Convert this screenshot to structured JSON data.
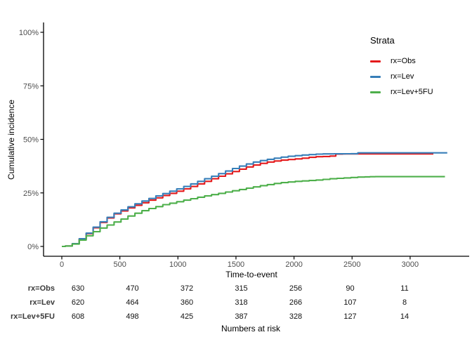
{
  "chart_data": {
    "type": "line",
    "subtype": "cumulative-incidence-step-curves",
    "title": "",
    "xlabel": "Time-to-event",
    "ylabel": "Cumulative incidence",
    "xlim": [
      -160,
      3380
    ],
    "ylim": [
      0,
      100
    ],
    "xticks": [
      0,
      500,
      1000,
      1500,
      2000,
      2500,
      3000
    ],
    "yticks": [
      {
        "value": 0,
        "label": "0%"
      },
      {
        "value": 25,
        "label": "25%"
      },
      {
        "value": 50,
        "label": "50%"
      },
      {
        "value": 75,
        "label": "75%"
      },
      {
        "value": 100,
        "label": "100%"
      }
    ],
    "grid": false,
    "legend_title": "Strata",
    "legend_position": "inside-top-right",
    "axis_color": "#000000",
    "tick_text_color": "#4d4d4d",
    "series": [
      {
        "name": "rx=Obs",
        "color": "#E41A1C",
        "points": [
          [
            0,
            0
          ],
          [
            30,
            0.2
          ],
          [
            90,
            1.2
          ],
          [
            150,
            3.5
          ],
          [
            210,
            6
          ],
          [
            270,
            8.7
          ],
          [
            330,
            11.2
          ],
          [
            390,
            13.3
          ],
          [
            450,
            15.2
          ],
          [
            510,
            16.6
          ],
          [
            570,
            18
          ],
          [
            630,
            19.2
          ],
          [
            690,
            20.4
          ],
          [
            750,
            21.6
          ],
          [
            810,
            22.7
          ],
          [
            870,
            23.8
          ],
          [
            930,
            24.8
          ],
          [
            990,
            25.8
          ],
          [
            1050,
            26.9
          ],
          [
            1110,
            28
          ],
          [
            1170,
            29.2
          ],
          [
            1230,
            30.4
          ],
          [
            1290,
            31.6
          ],
          [
            1350,
            32.8
          ],
          [
            1410,
            33.9
          ],
          [
            1470,
            35
          ],
          [
            1530,
            36.1
          ],
          [
            1590,
            37.1
          ],
          [
            1650,
            38
          ],
          [
            1710,
            38.8
          ],
          [
            1770,
            39.4
          ],
          [
            1830,
            39.9
          ],
          [
            1890,
            40.3
          ],
          [
            1950,
            40.6
          ],
          [
            2010,
            40.9
          ],
          [
            2070,
            41.2
          ],
          [
            2130,
            41.6
          ],
          [
            2190,
            41.9
          ],
          [
            2250,
            42
          ],
          [
            2310,
            42.2
          ],
          [
            2360,
            43.1
          ],
          [
            2420,
            43.2
          ],
          [
            3200,
            43.2
          ]
        ]
      },
      {
        "name": "rx=Lev",
        "color": "#377EB8",
        "points": [
          [
            0,
            0
          ],
          [
            30,
            0.2
          ],
          [
            90,
            1.3
          ],
          [
            150,
            3.6
          ],
          [
            210,
            6.2
          ],
          [
            270,
            9
          ],
          [
            330,
            11.5
          ],
          [
            390,
            13.6
          ],
          [
            450,
            15.5
          ],
          [
            510,
            17
          ],
          [
            570,
            18.5
          ],
          [
            630,
            19.9
          ],
          [
            690,
            21.2
          ],
          [
            750,
            22.4
          ],
          [
            810,
            23.6
          ],
          [
            870,
            24.7
          ],
          [
            930,
            25.8
          ],
          [
            990,
            26.9
          ],
          [
            1050,
            28
          ],
          [
            1110,
            29.2
          ],
          [
            1170,
            30.4
          ],
          [
            1230,
            31.6
          ],
          [
            1290,
            32.8
          ],
          [
            1350,
            34
          ],
          [
            1410,
            35.2
          ],
          [
            1470,
            36.4
          ],
          [
            1530,
            37.5
          ],
          [
            1590,
            38.5
          ],
          [
            1650,
            39.4
          ],
          [
            1710,
            40.1
          ],
          [
            1770,
            40.7
          ],
          [
            1830,
            41.2
          ],
          [
            1890,
            41.7
          ],
          [
            1950,
            42.1
          ],
          [
            2010,
            42.4
          ],
          [
            2070,
            42.7
          ],
          [
            2130,
            42.9
          ],
          [
            2190,
            43.1
          ],
          [
            2250,
            43.2
          ],
          [
            2490,
            43.3
          ],
          [
            2550,
            43.7
          ],
          [
            3320,
            43.7
          ]
        ]
      },
      {
        "name": "rx=Lev+5FU",
        "color": "#4DAF4A",
        "points": [
          [
            0,
            0
          ],
          [
            30,
            0.2
          ],
          [
            90,
            1.1
          ],
          [
            150,
            3
          ],
          [
            210,
            5
          ],
          [
            270,
            6.9
          ],
          [
            330,
            8.6
          ],
          [
            390,
            10
          ],
          [
            450,
            11.4
          ],
          [
            510,
            12.8
          ],
          [
            570,
            14.2
          ],
          [
            630,
            15.5
          ],
          [
            690,
            16.7
          ],
          [
            750,
            17.7
          ],
          [
            810,
            18.6
          ],
          [
            870,
            19.5
          ],
          [
            930,
            20.2
          ],
          [
            990,
            20.9
          ],
          [
            1050,
            21.6
          ],
          [
            1110,
            22.3
          ],
          [
            1170,
            23
          ],
          [
            1230,
            23.6
          ],
          [
            1290,
            24.2
          ],
          [
            1350,
            24.8
          ],
          [
            1410,
            25.4
          ],
          [
            1470,
            26
          ],
          [
            1530,
            26.6
          ],
          [
            1590,
            27.2
          ],
          [
            1650,
            27.8
          ],
          [
            1710,
            28.4
          ],
          [
            1770,
            28.9
          ],
          [
            1830,
            29.4
          ],
          [
            1890,
            29.8
          ],
          [
            1950,
            30.1
          ],
          [
            2010,
            30.4
          ],
          [
            2070,
            30.6
          ],
          [
            2130,
            30.8
          ],
          [
            2190,
            31
          ],
          [
            2250,
            31.3
          ],
          [
            2310,
            31.6
          ],
          [
            2370,
            31.8
          ],
          [
            2430,
            32
          ],
          [
            2490,
            32.2
          ],
          [
            2550,
            32.4
          ],
          [
            2610,
            32.5
          ],
          [
            2700,
            32.6
          ],
          [
            3300,
            32.6
          ]
        ]
      }
    ],
    "risk_table": {
      "caption": "Numbers at risk",
      "times": [
        0,
        500,
        1000,
        1500,
        2000,
        2500,
        3000
      ],
      "rows": [
        {
          "label": "rx=Obs",
          "values": [
            630,
            470,
            372,
            315,
            256,
            90,
            11
          ]
        },
        {
          "label": "rx=Lev",
          "values": [
            620,
            464,
            360,
            318,
            266,
            107,
            8
          ]
        },
        {
          "label": "rx=Lev+5FU",
          "values": [
            608,
            498,
            425,
            387,
            328,
            127,
            14
          ]
        }
      ]
    }
  }
}
